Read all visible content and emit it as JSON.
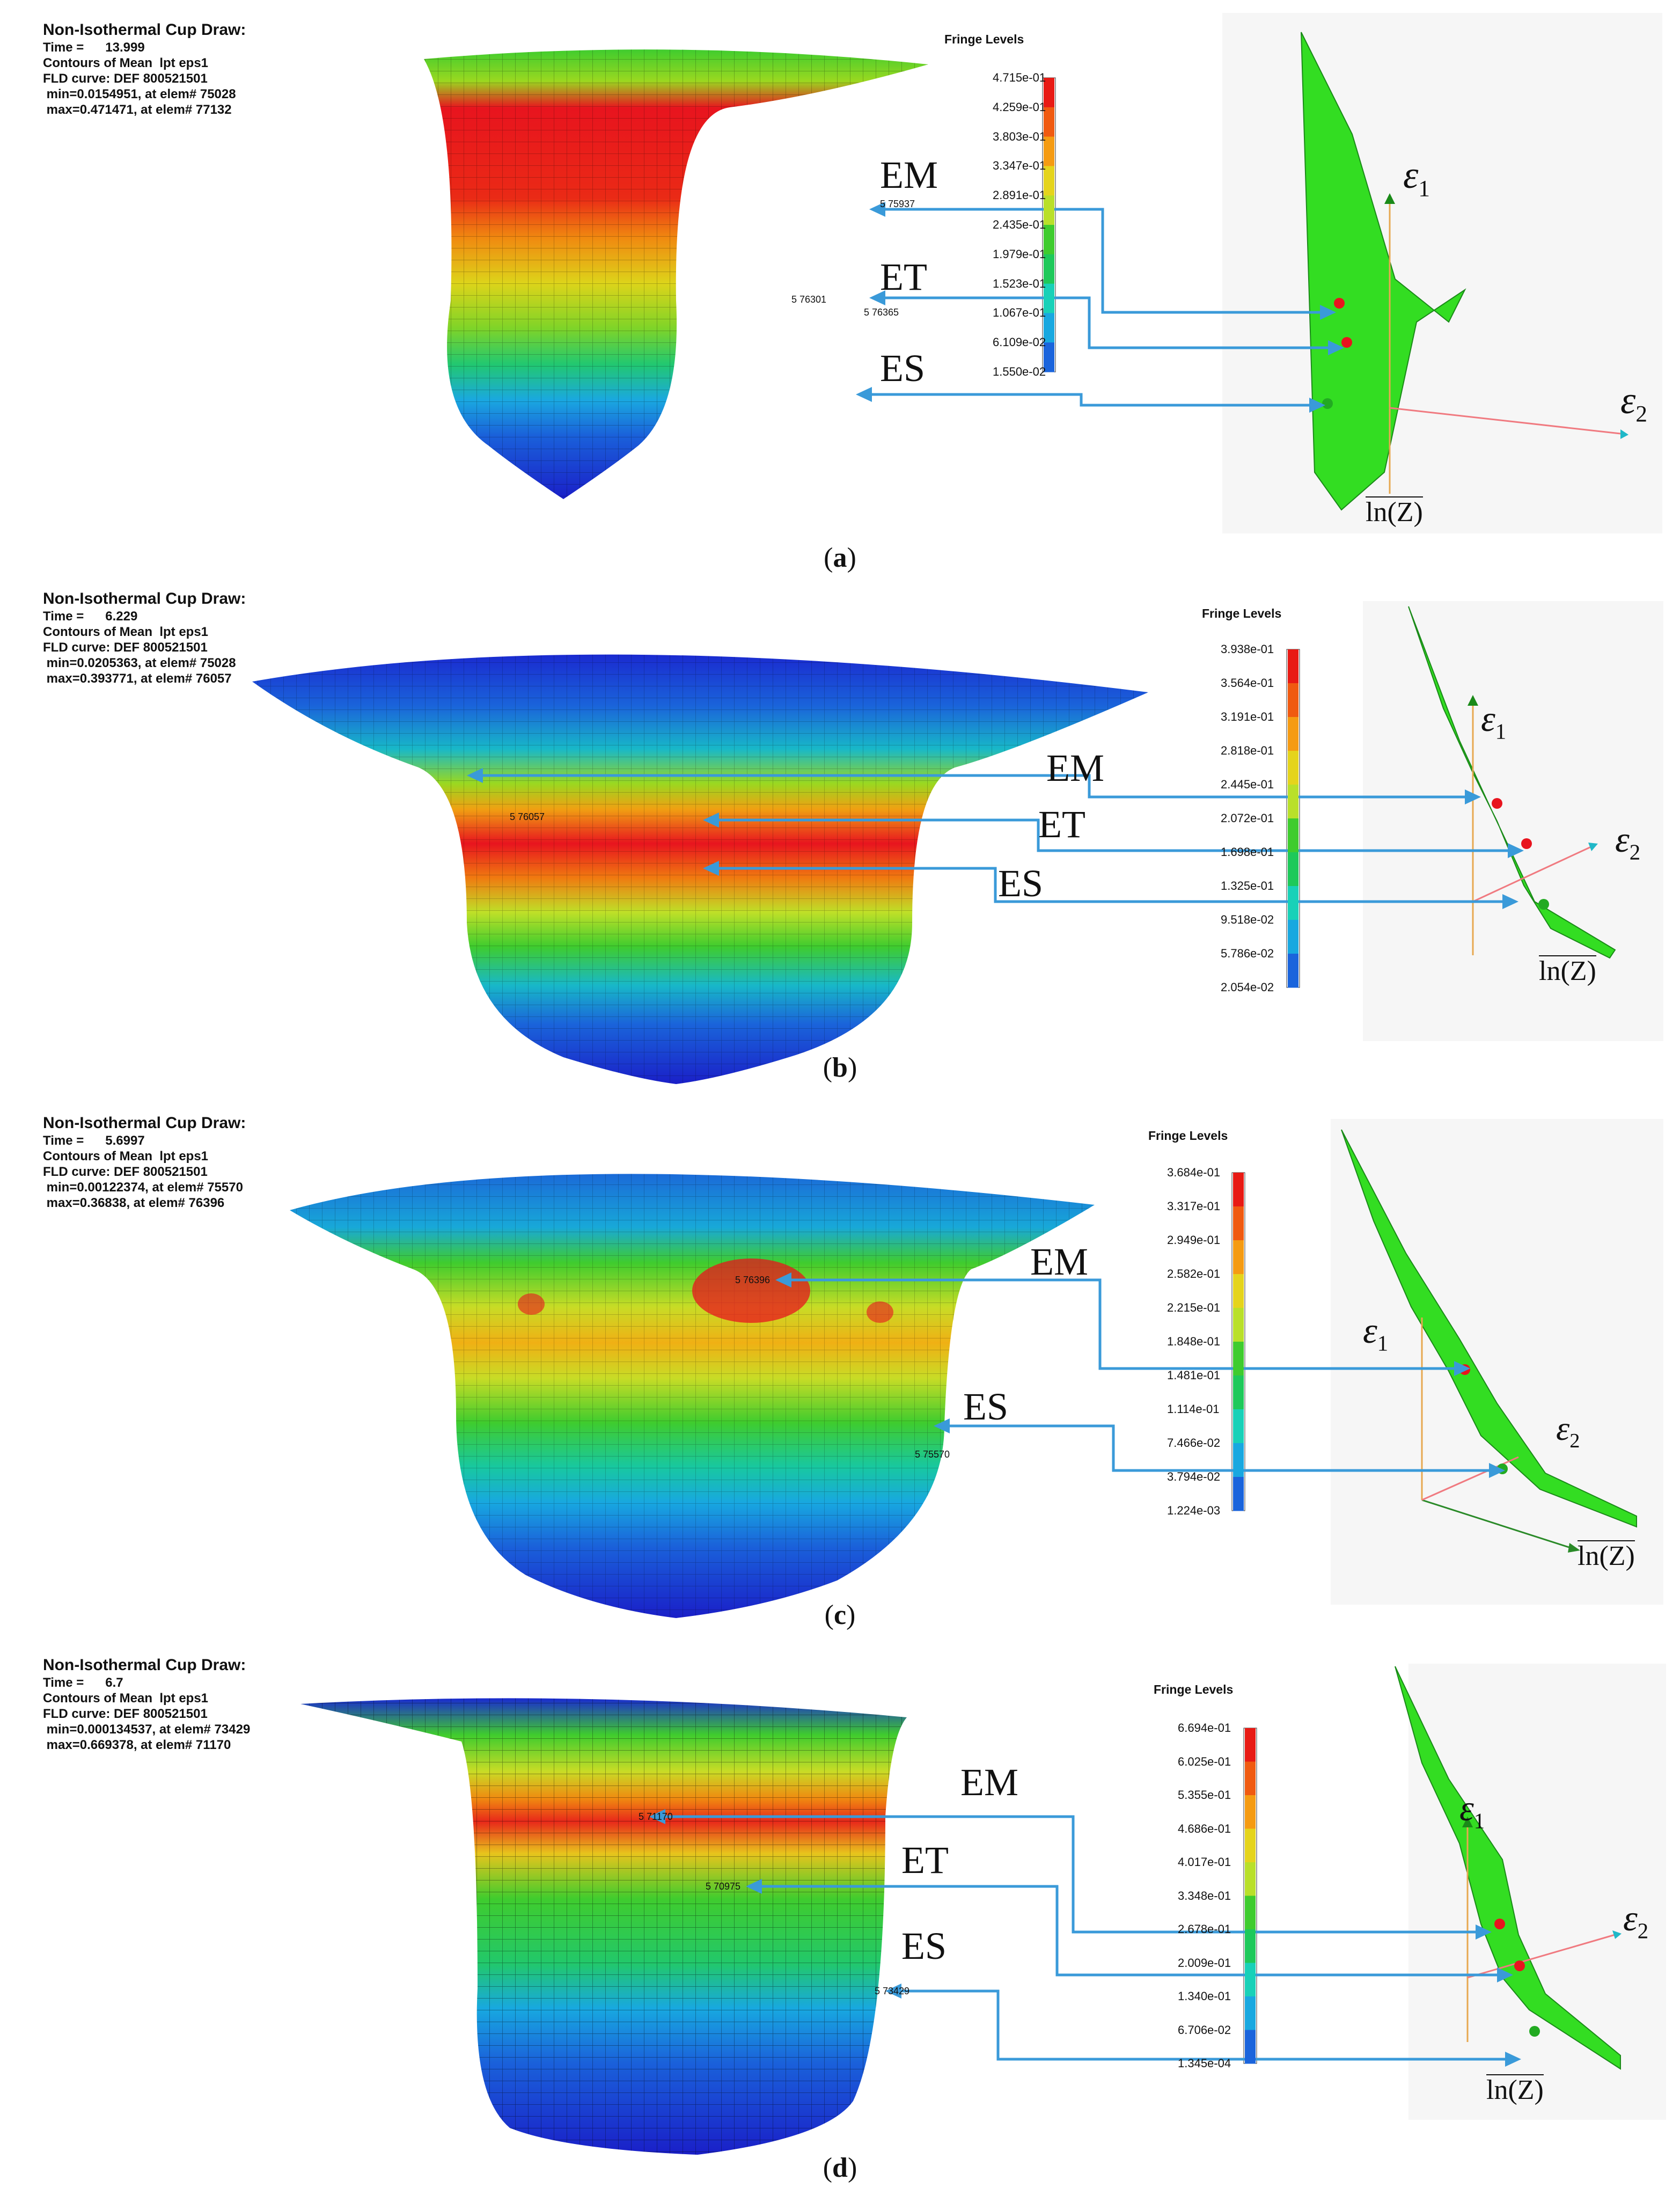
{
  "panels": [
    {
      "id": "a",
      "caption": "a",
      "info": {
        "title": "Non-Isothermal Cup Draw:",
        "time": "Time =      13.999",
        "contours": "Contours of Mean  lpt eps1",
        "fld": "FLD curve: DEF 800521501",
        "min": " min=0.0154951, at elem# 75028",
        "max": " max=0.471471, at elem# 77132"
      },
      "fringe_title": "Fringe Levels",
      "fringe_levels": [
        "4.715e-01",
        "4.259e-01",
        "3.803e-01",
        "3.347e-01",
        "2.891e-01",
        "2.435e-01",
        "1.979e-01",
        "1.523e-01",
        "1.067e-01",
        "6.109e-02",
        "1.550e-02"
      ],
      "labels": [
        "EM",
        "ET",
        "ES"
      ],
      "elem_ids": [
        "5 75937",
        "5 76301",
        "5 76365"
      ],
      "axes": {
        "e1": "ε",
        "e1_sub": "1",
        "e2": "ε",
        "e2_sub": "2",
        "lnz": "ln(Z)"
      }
    },
    {
      "id": "b",
      "caption": "b",
      "info": {
        "title": "Non-Isothermal Cup Draw:",
        "time": "Time =      6.229",
        "contours": "Contours of Mean  lpt eps1",
        "fld": "FLD curve: DEF 800521501",
        "min": " min=0.0205363, at elem# 75028",
        "max": " max=0.393771, at elem# 76057"
      },
      "fringe_title": "Fringe Levels",
      "fringe_levels": [
        "3.938e-01",
        "3.564e-01",
        "3.191e-01",
        "2.818e-01",
        "2.445e-01",
        "2.072e-01",
        "1.698e-01",
        "1.325e-01",
        "9.518e-02",
        "5.786e-02",
        "2.054e-02"
      ],
      "labels": [
        "EM",
        "ET",
        "ES"
      ],
      "elem_ids": [
        "5 76057"
      ],
      "axes": {
        "e1": "ε",
        "e1_sub": "1",
        "e2": "ε",
        "e2_sub": "2",
        "lnz": "ln(Z)"
      }
    },
    {
      "id": "c",
      "caption": "c",
      "info": {
        "title": "Non-Isothermal Cup Draw:",
        "time": "Time =      5.6997",
        "contours": "Contours of Mean  lpt eps1",
        "fld": "FLD curve: DEF 800521501",
        "min": " min=0.00122374, at elem# 75570",
        "max": " max=0.36838, at elem# 76396"
      },
      "fringe_title": "Fringe Levels",
      "fringe_levels": [
        "3.684e-01",
        "3.317e-01",
        "2.949e-01",
        "2.582e-01",
        "2.215e-01",
        "1.848e-01",
        "1.481e-01",
        "1.114e-01",
        "7.466e-02",
        "3.794e-02",
        "1.224e-03"
      ],
      "labels": [
        "EM",
        "ES"
      ],
      "elem_ids": [
        "5 76396",
        "5 75570"
      ],
      "axes": {
        "e1": "ε",
        "e1_sub": "1",
        "e2": "ε",
        "e2_sub": "2",
        "lnz": "ln(Z)"
      }
    },
    {
      "id": "d",
      "caption": "d",
      "info": {
        "title": "Non-Isothermal Cup Draw:",
        "time": "Time =      6.7",
        "contours": "Contours of Mean  lpt eps1",
        "fld": "FLD curve: DEF 800521501",
        "min": " min=0.000134537, at elem# 73429",
        "max": " max=0.669378, at elem# 71170"
      },
      "fringe_title": "Fringe Levels",
      "fringe_levels": [
        "6.694e-01",
        "6.025e-01",
        "5.355e-01",
        "4.686e-01",
        "4.017e-01",
        "3.348e-01",
        "2.678e-01",
        "2.009e-01",
        "1.340e-01",
        "6.706e-02",
        "1.345e-04"
      ],
      "labels": [
        "EM",
        "ET",
        "ES"
      ],
      "elem_ids": [
        "5 71170",
        "5 70975",
        "5 73429"
      ],
      "axes": {
        "e1": "ε",
        "e1_sub": "1",
        "e2": "ε",
        "e2_sub": "2",
        "lnz": "ln(Z)"
      }
    }
  ],
  "colors": {
    "arrow": "#3a9ad9",
    "scale": [
      "#e81a14",
      "#f05a10",
      "#f59b12",
      "#e5d41c",
      "#b9e02a",
      "#3fcc2e",
      "#1ec95a",
      "#18d1b8",
      "#18a8e0",
      "#1a64dc",
      "#1a1fd0"
    ],
    "fld_green": "#33dd22",
    "marker_red": "#e8141e",
    "marker_green": "#22aa22"
  }
}
